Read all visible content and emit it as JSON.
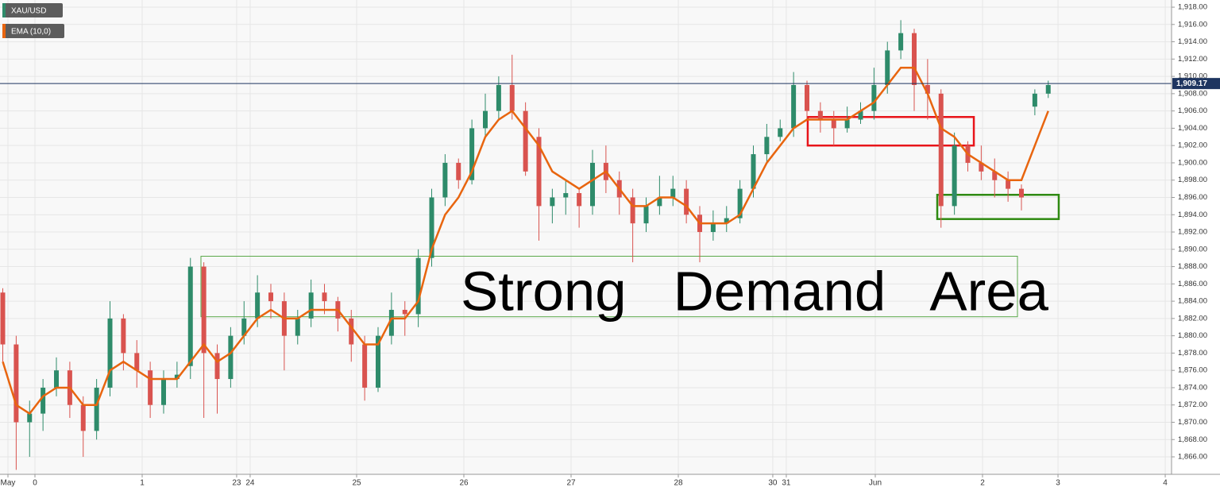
{
  "chart_data": {
    "type": "candlestick",
    "series_name": "XAU/USD",
    "up_color": "#2e8b6a",
    "down_color": "#d9534f",
    "x": [
      -0.3,
      -0.175,
      -0.05,
      0.075,
      0.2,
      0.325,
      0.45,
      0.575,
      0.7,
      0.825,
      0.95,
      1.075,
      1.2,
      1.325,
      1.45,
      1.575,
      1.7,
      1.825,
      1.95,
      2.075,
      2.2,
      2.325,
      2.45,
      2.575,
      2.7,
      2.825,
      2.95,
      3.075,
      3.2,
      3.325,
      3.45,
      3.575,
      3.7,
      3.825,
      3.95,
      4.075,
      4.2,
      4.325,
      4.45,
      4.575,
      4.7,
      4.825,
      4.95,
      5.075,
      5.2,
      5.325,
      5.45,
      5.575,
      5.7,
      5.825,
      5.95,
      6.075,
      6.2,
      6.325,
      6.45,
      6.575,
      6.7,
      6.825,
      6.95,
      7.075,
      7.2,
      7.325,
      7.45,
      7.575,
      7.7,
      7.825,
      7.95,
      8.075,
      8.2,
      8.325,
      8.45,
      8.575,
      8.7,
      8.825,
      8.95,
      9.075,
      9.2,
      9.325,
      9.45
    ],
    "open": [
      1885,
      1879,
      1870,
      1871,
      1874,
      1876,
      1872,
      1869,
      1874,
      1882,
      1878,
      1876,
      1872,
      1875,
      1876.5,
      1888,
      1878,
      1875,
      1880,
      1882,
      1885,
      1884,
      1880,
      1882,
      1885,
      1884,
      1882,
      1879,
      1874,
      1880,
      1883,
      1882.5,
      1889,
      1896,
      1900,
      1898,
      1904,
      1906,
      1909,
      1906,
      1903,
      1895,
      1896,
      1896.5,
      1895,
      1900,
      1898,
      1896,
      1893,
      1895,
      1896,
      1897,
      1894,
      1892,
      1893,
      1893.6,
      1897,
      1901,
      1903,
      1904,
      1909,
      1906,
      1905,
      1904,
      1905,
      1906,
      1909,
      1913,
      1915,
      1909,
      1908,
      1895,
      1902,
      1900,
      1899,
      1898,
      1897,
      1906.5,
      1908
    ],
    "close": [
      1879,
      1870,
      1871,
      1874,
      1876,
      1872,
      1869,
      1874,
      1882,
      1878,
      1876,
      1872,
      1875,
      1875.5,
      1888,
      1878,
      1875,
      1880,
      1882,
      1885,
      1884,
      1880,
      1882,
      1885,
      1884,
      1882,
      1879,
      1874,
      1880,
      1883,
      1882.5,
      1889,
      1896,
      1900,
      1898,
      1904,
      1906,
      1909,
      1906,
      1899,
      1895,
      1896,
      1896.5,
      1895,
      1900,
      1898,
      1896,
      1893,
      1895,
      1896,
      1897,
      1894,
      1892,
      1893,
      1893.6,
      1897,
      1901,
      1903,
      1904,
      1909,
      1906,
      1905,
      1904,
      1905,
      1906,
      1909,
      1913,
      1915,
      1909,
      1908,
      1895,
      1902,
      1900,
      1899,
      1898,
      1897,
      1896,
      1908,
      1909
    ],
    "high": [
      1885.5,
      1880,
      1872.5,
      1875,
      1877.5,
      1877,
      1873,
      1875,
      1884,
      1882.5,
      1879.5,
      1877,
      1876,
      1877,
      1889,
      1888.5,
      1879,
      1881,
      1884,
      1887,
      1886,
      1885,
      1883,
      1886.5,
      1886,
      1884.5,
      1883,
      1880,
      1881,
      1885,
      1884,
      1890,
      1897,
      1901,
      1900.5,
      1905,
      1908,
      1910,
      1912.5,
      1907,
      1904,
      1897,
      1898,
      1897,
      1901.5,
      1902,
      1899,
      1897,
      1896,
      1898.5,
      1898.5,
      1898,
      1895,
      1894.5,
      1895,
      1898,
      1902,
      1904.5,
      1905,
      1910.5,
      1909.5,
      1907,
      1906,
      1906.5,
      1907,
      1911,
      1914,
      1916.5,
      1915.5,
      1912,
      1908.5,
      1903.5,
      1902.5,
      1902,
      1900.5,
      1899,
      1897.5,
      1908.5,
      1909.5
    ],
    "low": [
      1877,
      1864.5,
      1866,
      1869,
      1873,
      1870.5,
      1866,
      1868,
      1873,
      1876,
      1874,
      1870.5,
      1871,
      1874,
      1875,
      1870.5,
      1871,
      1874,
      1879,
      1881,
      1882,
      1876,
      1879,
      1881,
      1882.5,
      1880.5,
      1877,
      1872.5,
      1873.5,
      1879,
      1880,
      1881,
      1888,
      1895,
      1897,
      1897.5,
      1903,
      1905,
      1905,
      1898.5,
      1891,
      1893,
      1894,
      1892.5,
      1894,
      1896.5,
      1894,
      1888.5,
      1892,
      1894,
      1895,
      1893,
      1888.5,
      1891,
      1892,
      1893,
      1896,
      1900,
      1902.5,
      1903,
      1905,
      1903.5,
      1902,
      1903.5,
      1904.5,
      1905,
      1908,
      1912,
      1906,
      1905,
      1892.5,
      1894,
      1899,
      1898,
      1896,
      1895.5,
      1894.5,
      1905.5,
      1907.5
    ],
    "ema": {
      "name": "EMA (10,0)",
      "color": "#e8650f",
      "values": [
        1877,
        1872,
        1871,
        1873,
        1874,
        1874,
        1872,
        1872,
        1876,
        1877,
        1876,
        1875,
        1875,
        1875,
        1877,
        1879,
        1877,
        1878,
        1880,
        1882,
        1883,
        1882,
        1882,
        1883,
        1883,
        1883,
        1881,
        1879,
        1879,
        1882,
        1882,
        1884,
        1890,
        1894,
        1896,
        1899,
        1903,
        1905,
        1906,
        1904,
        1902,
        1899,
        1898,
        1897,
        1898,
        1899,
        1897,
        1895,
        1895,
        1896,
        1896,
        1895,
        1893,
        1893,
        1893,
        1894,
        1897,
        1900,
        1902,
        1904,
        1905,
        1905,
        1905,
        1905,
        1906,
        1907,
        1909,
        1911,
        1911,
        1908,
        1904,
        1903,
        1901,
        1900,
        1899,
        1898,
        1898,
        1902,
        1906
      ]
    },
    "last_price": {
      "value": 1909.17,
      "label": "1,909.17"
    },
    "annotation": "Strong   Demand   Area",
    "zones": [
      {
        "x": [
          1.548,
          9.163
        ],
        "y": [
          1882.2,
          1889.2
        ],
        "color": "#5aa84a"
      },
      {
        "x": [
          7.207,
          8.756
        ],
        "y": [
          1902,
          1905.3
        ],
        "color": "#e8141a"
      },
      {
        "x": [
          8.415,
          9.548
        ],
        "y": [
          1893.5,
          1896.3
        ],
        "color": "#2f8a12"
      }
    ],
    "xlim": [
      -0.326,
      10.6
    ],
    "ylim": [
      1863.98,
      1918.83
    ],
    "grid": true,
    "xticks": [
      {
        "value": -0.252,
        "label": "May"
      },
      0,
      1,
      {
        "value": 1.881,
        "label": "23"
      },
      {
        "value": 2.007,
        "label": "24"
      },
      {
        "value": 3,
        "label": "25"
      },
      {
        "value": 4,
        "label": "26"
      },
      {
        "value": 5,
        "label": "27"
      },
      {
        "value": 6,
        "label": "28"
      },
      {
        "value": 6.881,
        "label": "30"
      },
      {
        "value": 7.007,
        "label": "31"
      },
      {
        "value": 7.837,
        "label": "Jun"
      },
      {
        "value": 8.837,
        "label": "2"
      },
      {
        "value": 9.541,
        "label": "3"
      },
      {
        "value": 10.541,
        "label": "4"
      }
    ],
    "yticks": [
      {
        "value": 1866,
        "label": "1,866.00"
      },
      {
        "value": 1868,
        "label": "1,868.00"
      },
      {
        "value": 1870,
        "label": "1,870.00"
      },
      {
        "value": 1872,
        "label": "1,872.00"
      },
      {
        "value": 1874,
        "label": "1,874.00"
      },
      {
        "value": 1876,
        "label": "1,876.00"
      },
      {
        "value": 1878,
        "label": "1,878.00"
      },
      {
        "value": 1880,
        "label": "1,880.00"
      },
      {
        "value": 1882,
        "label": "1,882.00"
      },
      {
        "value": 1884,
        "label": "1,884.00"
      },
      {
        "value": 1886,
        "label": "1,886.00"
      },
      {
        "value": 1888,
        "label": "1,888.00"
      },
      {
        "value": 1890,
        "label": "1,890.00"
      },
      {
        "value": 1892,
        "label": "1,892.00"
      },
      {
        "value": 1894,
        "label": "1,894.00"
      },
      {
        "value": 1896,
        "label": "1,896.00"
      },
      {
        "value": 1898,
        "label": "1,898.00"
      },
      {
        "value": 1900,
        "label": "1,900.00"
      },
      {
        "value": 1902,
        "label": "1,902.00"
      },
      {
        "value": 1904,
        "label": "1,904.00"
      },
      {
        "value": 1906,
        "label": "1,906.00"
      },
      {
        "value": 1908,
        "label": "1,908.00"
      },
      {
        "value": 1910,
        "label": "1,910.00"
      },
      {
        "value": 1912,
        "label": "1,912.00"
      },
      {
        "value": 1914,
        "label": "1,914.00"
      },
      {
        "value": 1916,
        "label": "1,916.00"
      },
      {
        "value": 1918,
        "label": "1,918.00"
      }
    ]
  }
}
